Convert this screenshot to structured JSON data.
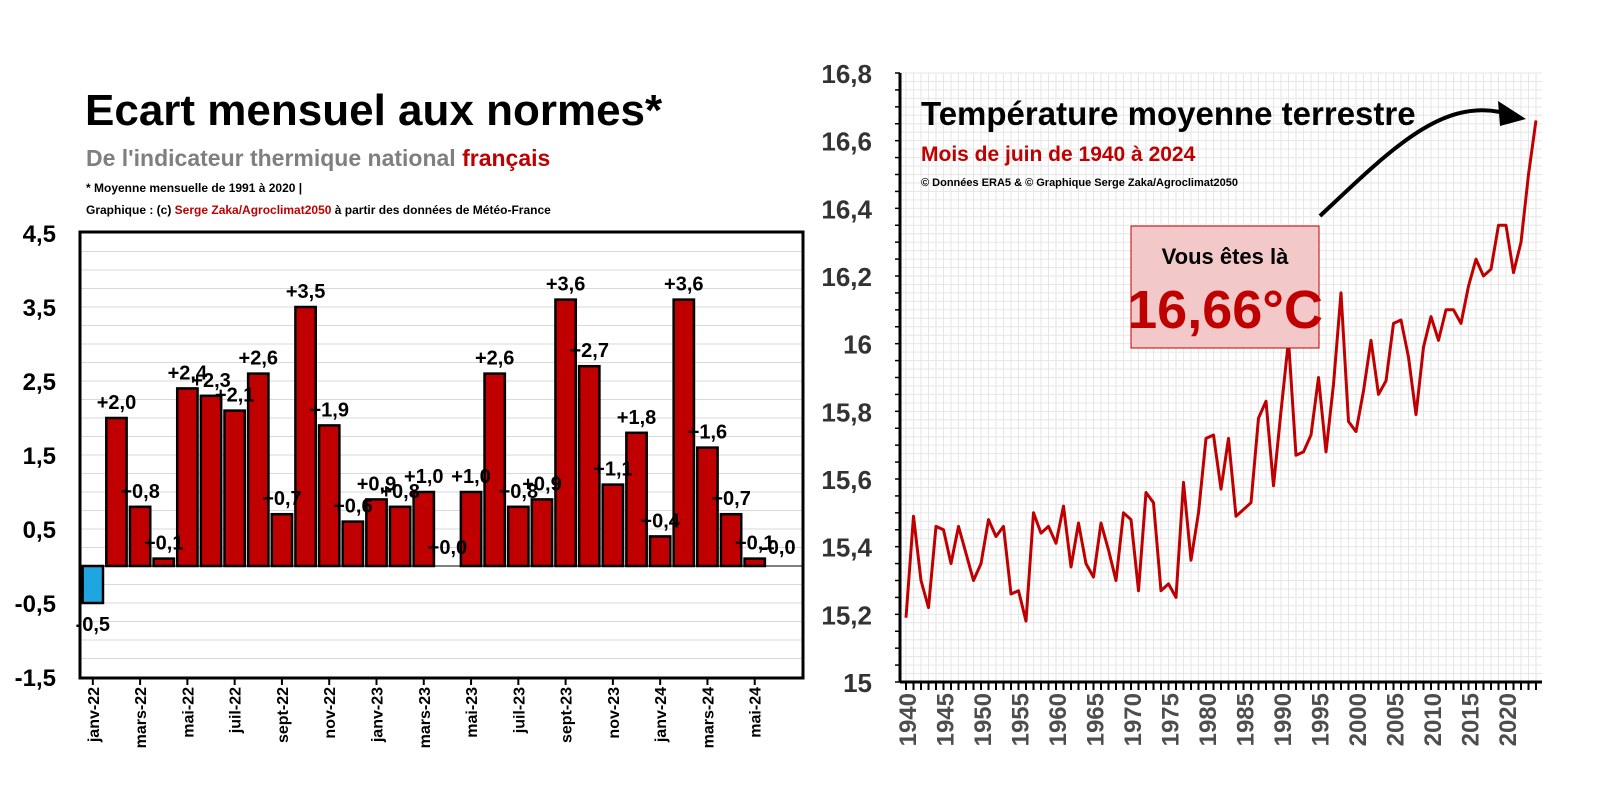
{
  "left": {
    "title": "Ecart mensuel aux normes*",
    "subtitle_prefix": "De l'indicateur thermique national ",
    "subtitle_highlight": "français",
    "note": "* Moyenne mensuelle de 1991 à 2020 |",
    "credit_prefix": "Graphique : (c) ",
    "credit_author": "Serge Zaka/Agroclimat2050",
    "credit_suffix": " à partir des données de Météo-France"
  },
  "right": {
    "title": "Température moyenne terrestre",
    "subtitle": "Mois de juin de 1940 à 2024",
    "credit": "© Données ERA5 & © Graphique Serge Zaka/Agroclimat2050",
    "box_label": "Vous êtes là",
    "box_value": "16,66°C"
  },
  "colors": {
    "bar_positive": "#c00000",
    "bar_negative": "#1fa5e0",
    "line": "#c00000",
    "accent_text": "#c00000",
    "subtitle_gray": "#7f7f7f"
  },
  "chart_data": [
    {
      "type": "bar",
      "categories": [
        "janv-22",
        "févr-22",
        "mars-22",
        "avr-22",
        "mai-22",
        "juin-22",
        "juil-22",
        "août-22",
        "sept-22",
        "oct-22",
        "nov-22",
        "déc-22",
        "janv-23",
        "févr-23",
        "mars-23",
        "avr-23",
        "mai-23",
        "juin-23",
        "juil-23",
        "août-23",
        "sept-23",
        "oct-23",
        "nov-23",
        "déc-23",
        "janv-24",
        "févr-24",
        "mars-24",
        "avr-24",
        "mai-24",
        "juin-24"
      ],
      "tick_labels": [
        "janv-22",
        "mars-22",
        "mai-22",
        "juil-22",
        "sept-22",
        "nov-22",
        "janv-23",
        "mars-23",
        "mai-23",
        "juil-23",
        "sept-23",
        "nov-23",
        "janv-24",
        "mars-24",
        "mai-24"
      ],
      "values": [
        -0.5,
        2.0,
        0.8,
        0.1,
        2.4,
        2.3,
        2.1,
        2.6,
        0.7,
        3.5,
        1.9,
        0.6,
        0.9,
        0.8,
        1.0,
        -0.0,
        1.0,
        2.6,
        0.8,
        0.9,
        3.6,
        2.7,
        1.1,
        1.8,
        0.4,
        3.6,
        1.6,
        0.7,
        0.1,
        -0.0
      ],
      "data_labels": [
        "-0,5",
        "+2,0",
        "+0,8",
        "+0,1",
        "+2,4",
        "+2,3",
        "+2,1",
        "+2,6",
        "+0,7",
        "+3,5",
        "+1,9",
        "+0,6",
        "+0,9",
        "+0,8",
        "+1,0",
        "+0,0",
        "+1,0",
        "+2,6",
        "+0,8",
        "+0,9",
        "+3,6",
        "+2,7",
        "+1,1",
        "+1,8",
        "+0,4",
        "+3,6",
        "+1,6",
        "+0,7",
        "+0,1",
        "-0,0"
      ],
      "ylim": [
        -1.5,
        4.5
      ],
      "y_ticks": [
        "-1,5",
        "-0,5",
        "0,5",
        "1,5",
        "2,5",
        "3,5",
        "4,5"
      ],
      "grid": true
    },
    {
      "type": "line",
      "x": [
        1940,
        1941,
        1942,
        1943,
        1944,
        1945,
        1946,
        1947,
        1948,
        1949,
        1950,
        1951,
        1952,
        1953,
        1954,
        1955,
        1956,
        1957,
        1958,
        1959,
        1960,
        1961,
        1962,
        1963,
        1964,
        1965,
        1966,
        1967,
        1968,
        1969,
        1970,
        1971,
        1972,
        1973,
        1974,
        1975,
        1976,
        1977,
        1978,
        1979,
        1980,
        1981,
        1982,
        1983,
        1984,
        1985,
        1986,
        1987,
        1988,
        1989,
        1990,
        1991,
        1992,
        1993,
        1994,
        1995,
        1996,
        1997,
        1998,
        1999,
        2000,
        2001,
        2002,
        2003,
        2004,
        2005,
        2006,
        2007,
        2008,
        2009,
        2010,
        2011,
        2012,
        2013,
        2014,
        2015,
        2016,
        2017,
        2018,
        2019,
        2020,
        2021,
        2022,
        2023,
        2024
      ],
      "y": [
        15.19,
        15.49,
        15.3,
        15.22,
        15.46,
        15.45,
        15.35,
        15.46,
        15.38,
        15.3,
        15.35,
        15.48,
        15.43,
        15.46,
        15.26,
        15.27,
        15.18,
        15.5,
        15.44,
        15.46,
        15.41,
        15.52,
        15.34,
        15.47,
        15.35,
        15.31,
        15.47,
        15.39,
        15.3,
        15.5,
        15.48,
        15.27,
        15.56,
        15.53,
        15.27,
        15.29,
        15.25,
        15.59,
        15.36,
        15.5,
        15.72,
        15.73,
        15.57,
        15.72,
        15.49,
        15.51,
        15.53,
        15.78,
        15.83,
        15.58,
        15.8,
        16.01,
        15.67,
        15.68,
        15.73,
        15.9,
        15.68,
        15.88,
        16.15,
        15.77,
        15.74,
        15.86,
        16.01,
        15.85,
        15.89,
        16.06,
        16.07,
        15.96,
        15.79,
        15.99,
        16.08,
        16.01,
        16.1,
        16.1,
        16.06,
        16.17,
        16.25,
        16.2,
        16.22,
        16.35,
        16.35,
        16.21,
        16.3,
        16.5,
        16.66
      ],
      "tick_labels": [
        "1940",
        "1945",
        "1950",
        "1955",
        "1960",
        "1965",
        "1970",
        "1975",
        "1980",
        "1985",
        "1990",
        "1995",
        "2000",
        "2005",
        "2010",
        "2015",
        "2020"
      ],
      "ylim": [
        15,
        16.8
      ],
      "y_ticks": [
        "15",
        "15,2",
        "15,4",
        "15,6",
        "15,8",
        "16",
        "16,2",
        "16,4",
        "16,6",
        "16,8"
      ],
      "grid": true
    }
  ]
}
